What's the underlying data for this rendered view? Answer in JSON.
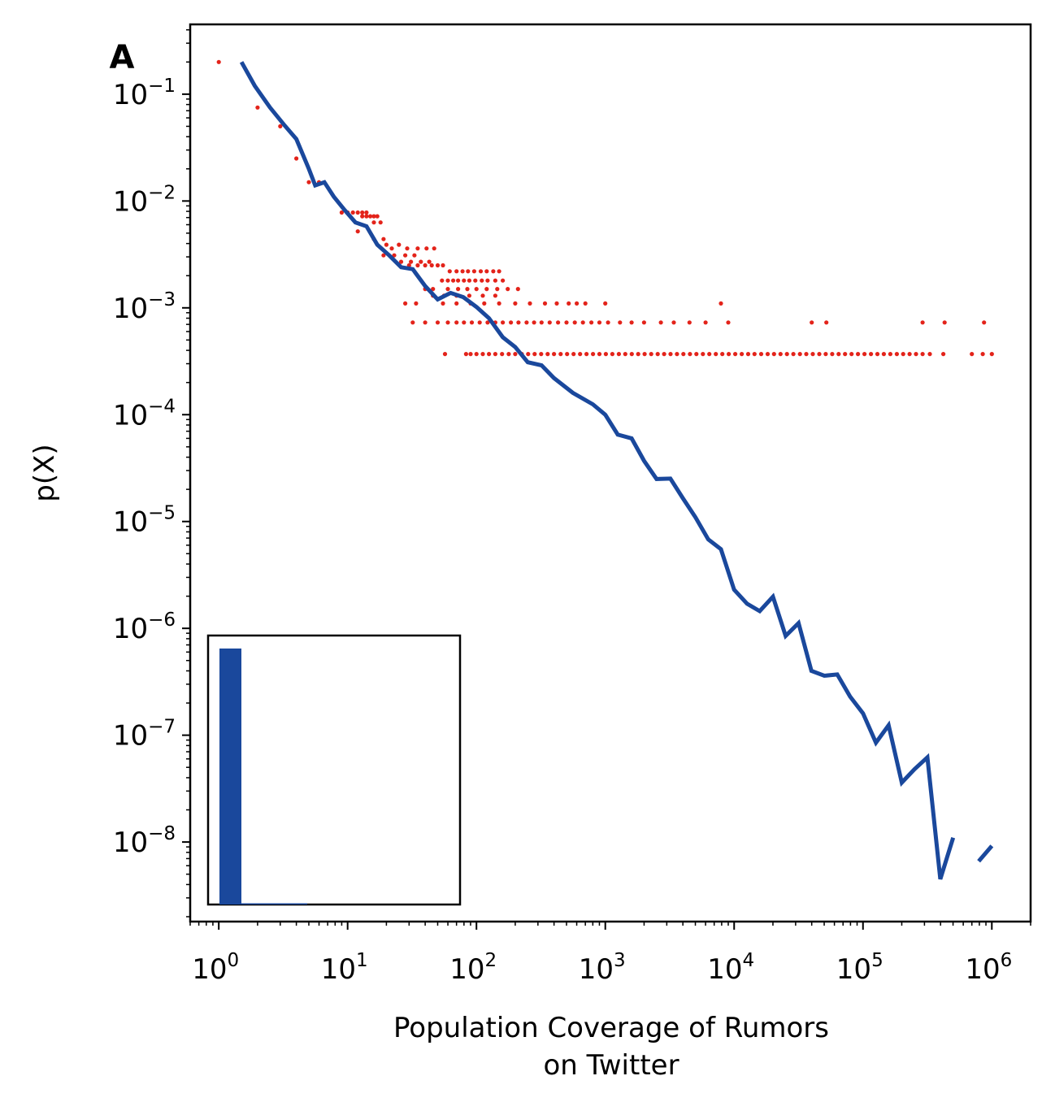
{
  "chart_data": {
    "type": "line",
    "title": "",
    "panel_label": "A",
    "xlabel": [
      "Population Coverage of Rumors",
      "on Twitter"
    ],
    "ylabel": "p(X)",
    "xscale": "log",
    "yscale": "log",
    "xlim": [
      0.6,
      2000000
    ],
    "ylim": [
      1.8e-09,
      0.45
    ],
    "x_ticks": [
      {
        "value": 1,
        "base": "10",
        "exp": "0"
      },
      {
        "value": 10,
        "base": "10",
        "exp": "1"
      },
      {
        "value": 100,
        "base": "10",
        "exp": "2"
      },
      {
        "value": 1000,
        "base": "10",
        "exp": "3"
      },
      {
        "value": 10000,
        "base": "10",
        "exp": "4"
      },
      {
        "value": 100000,
        "base": "10",
        "exp": "5"
      },
      {
        "value": 1000000,
        "base": "10",
        "exp": "6"
      }
    ],
    "y_ticks": [
      {
        "value": 0.1,
        "base": "10",
        "exp": "−1"
      },
      {
        "value": 0.01,
        "base": "10",
        "exp": "−2"
      },
      {
        "value": 0.001,
        "base": "10",
        "exp": "−3"
      },
      {
        "value": 0.0001,
        "base": "10",
        "exp": "−4"
      },
      {
        "value": 1e-05,
        "base": "10",
        "exp": "−5"
      },
      {
        "value": 1e-06,
        "base": "10",
        "exp": "−6"
      },
      {
        "value": 1e-07,
        "base": "10",
        "exp": "−7"
      },
      {
        "value": 1e-08,
        "base": "10",
        "exp": "−8"
      }
    ],
    "grid": false,
    "colors": {
      "line": "#1a489c",
      "scatter": "#e3231a",
      "inset_bar": "#1a489c"
    },
    "series": [
      {
        "type": "line",
        "segments": [
          [
            [
              1.5,
              0.2
            ],
            [
              1.9,
              0.12
            ],
            [
              2.5,
              0.075
            ],
            [
              3.2,
              0.052
            ],
            [
              4.0,
              0.038
            ],
            [
              5.0,
              0.02
            ],
            [
              5.6,
              0.014
            ],
            [
              6.6,
              0.015
            ],
            [
              7.8,
              0.011
            ],
            [
              9.5,
              0.0082
            ],
            [
              11.5,
              0.0063
            ],
            [
              14,
              0.0058
            ],
            [
              17,
              0.0039
            ],
            [
              21,
              0.0031
            ],
            [
              26,
              0.0024
            ],
            [
              32,
              0.0023
            ],
            [
              40,
              0.0016
            ],
            [
              50,
              0.0012
            ],
            [
              63,
              0.00138
            ],
            [
              79,
              0.00126
            ],
            [
              100,
              0.00102
            ],
            [
              125,
              0.0008
            ],
            [
              160,
              0.00053
            ],
            [
              200,
              0.00043
            ],
            [
              250,
              0.00031
            ],
            [
              320,
              0.00029
            ],
            [
              400,
              0.00022
            ],
            [
              560,
              0.00016
            ],
            [
              800,
              0.000125
            ],
            [
              1000,
              0.0001
            ],
            [
              1250,
              6.5e-05
            ],
            [
              1600,
              6e-05
            ],
            [
              2000,
              3.7e-05
            ],
            [
              2500,
              2.5e-05
            ],
            [
              3200,
              2.52e-05
            ],
            [
              4000,
              1.65e-05
            ],
            [
              5000,
              1.1e-05
            ],
            [
              6300,
              6.8e-06
            ],
            [
              7900,
              5.5e-06
            ],
            [
              10000,
              2.3e-06
            ],
            [
              12600,
              1.7e-06
            ],
            [
              15800,
              1.45e-06
            ],
            [
              20000,
              1.98e-06
            ],
            [
              25100,
              8.5e-07
            ],
            [
              31600,
              1.12e-06
            ],
            [
              39800,
              4e-07
            ],
            [
              50100,
              3.6e-07
            ],
            [
              63100,
              3.7e-07
            ],
            [
              79400,
              2.3e-07
            ],
            [
              100000,
              1.6e-07
            ],
            [
              126000,
              8.5e-08
            ],
            [
              158000,
              1.24e-07
            ],
            [
              200000,
              3.6e-08
            ],
            [
              251000,
              4.8e-08
            ],
            [
              316000,
              6.2e-08
            ],
            [
              398000,
              4.5e-09
            ],
            [
              501000,
              1.1e-08
            ]
          ],
          [
            [
              790000,
              6.6e-09
            ],
            [
              1000000,
              9.2e-09
            ]
          ]
        ]
      },
      {
        "type": "scatter",
        "rows": [
          {
            "y": 0.2,
            "xs": [
              1
            ]
          },
          {
            "y": 0.075,
            "xs": [
              2
            ]
          },
          {
            "y": 0.05,
            "xs": [
              3
            ]
          },
          {
            "y": 0.025,
            "xs": [
              4
            ]
          },
          {
            "y": 0.015,
            "xs": [
              5,
              6
            ]
          },
          {
            "y": 0.0078,
            "xs": [
              9,
              10,
              11,
              12,
              13,
              14
            ]
          },
          {
            "y": 0.0072,
            "xs": [
              13,
              14,
              15,
              16,
              17
            ]
          },
          {
            "y": 0.0063,
            "xs": [
              16,
              18
            ]
          },
          {
            "y": 0.0052,
            "xs": [
              12
            ]
          },
          {
            "y": 0.0044,
            "xs": [
              16,
              19
            ]
          },
          {
            "y": 0.0039,
            "xs": [
              20,
              25
            ]
          },
          {
            "y": 0.0036,
            "xs": [
              22,
              29,
              35,
              41,
              47
            ]
          },
          {
            "y": 0.0031,
            "xs": [
              19,
              23,
              28,
              33
            ]
          },
          {
            "y": 0.0027,
            "xs": [
              26,
              31,
              37,
              43
            ]
          },
          {
            "y": 0.0025,
            "xs": [
              30,
              35,
              40,
              45,
              50,
              55
            ]
          },
          {
            "y": 0.0022,
            "xs": [
              62,
              70,
              78,
              86,
              96,
              108,
              120,
              135,
              150
            ]
          },
          {
            "y": 0.0018,
            "xs": [
              54,
              60,
              66,
              72,
              80,
              88,
              98,
              110,
              122,
              140,
              160
            ]
          },
          {
            "y": 0.0015,
            "xs": [
              40,
              46,
              60,
              72,
              85,
              100,
              120,
              145,
              175,
              210
            ]
          },
          {
            "y": 0.0013,
            "xs": [
              46,
              56,
              70,
              88,
              112,
              140
            ]
          },
          {
            "y": 0.0011,
            "xs": [
              28,
              34,
              55,
              70,
              90,
              115,
              150,
              200,
              260,
              340,
              420,
              520,
              600,
              700,
              1000,
              7900
            ]
          },
          {
            "y": 0.00073,
            "xs": [
              32,
              40,
              50,
              60,
              70,
              80,
              92,
              106,
              122,
              140,
              160,
              185,
              212,
              245,
              280,
              320,
              370,
              430,
              500,
              580,
              670,
              780,
              900,
              1050,
              1300,
              1600,
              2000,
              2700,
              3400,
              4500,
              6000,
              9000,
              40000,
              52000,
              290000,
              430000,
              870000
            ]
          },
          {
            "y": 0.00037,
            "xs": [
              57,
              83,
              90,
              100,
              112,
              125,
              140,
              158,
              178,
              200,
              225,
              252,
              283,
              318,
              357,
              400,
              450,
              505,
              567,
              637,
              715,
              803,
              900,
              1010,
              1135,
              1275,
              1430,
              1605,
              1800,
              2020,
              2270,
              2550,
              2860,
              3210,
              3600,
              4040,
              4540,
              5090,
              5720,
              6420,
              7210,
              8090,
              9080,
              10200,
              11450,
              12850,
              14400,
              16200,
              18200,
              20400,
              22900,
              25700,
              28800,
              32400,
              36300,
              40800,
              45800,
              51400,
              57700,
              64700,
              72600,
              81500,
              91500,
              102700,
              115300,
              129400,
              145200,
              163000,
              183000,
              205000,
              230000,
              258000,
              290000,
              330000,
              420000,
              700000,
              850000,
              1000000
            ]
          }
        ]
      }
    ],
    "inset": {
      "type": "bar",
      "values": [
        1.0,
        0.004,
        0.002,
        0.001
      ]
    }
  }
}
